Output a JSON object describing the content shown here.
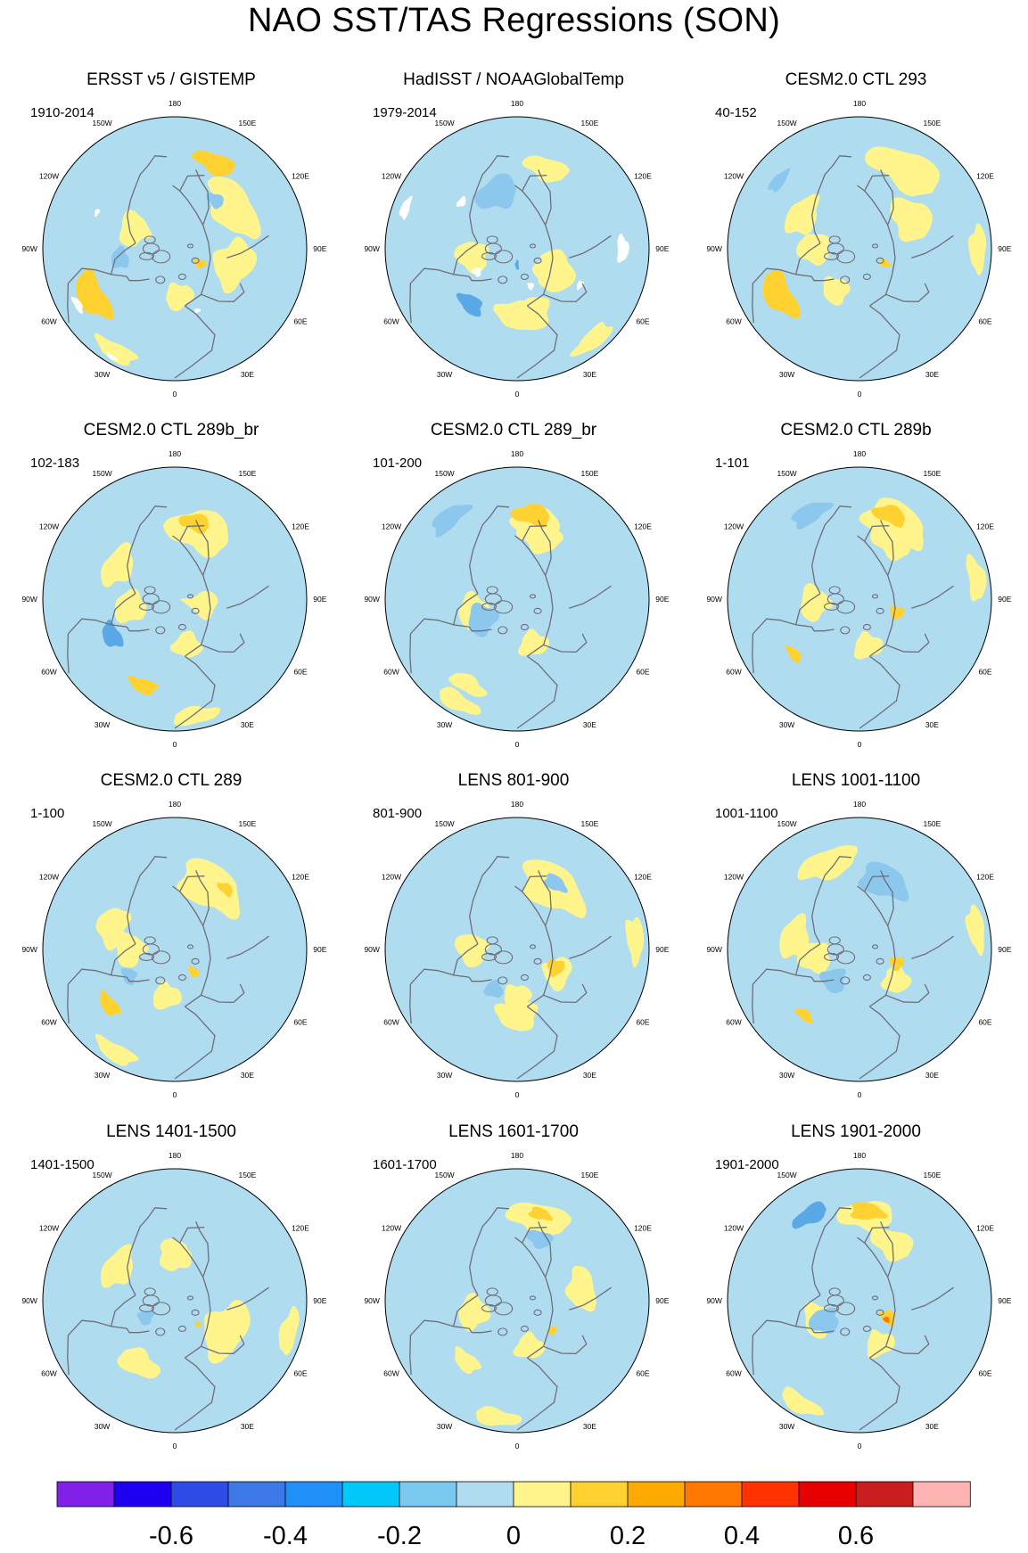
{
  "title": "NAO SST/TAS Regressions (SON)",
  "chart_data": {
    "type": "polar-stereographic contour maps",
    "variable": "SST/TAS regression on NAO",
    "season": "SON",
    "projection": "North polar stereographic",
    "longitude_labels": [
      "180",
      "150W",
      "150E",
      "120W",
      "120E",
      "90W",
      "90E",
      "60W",
      "60E",
      "30W",
      "30E",
      "0"
    ],
    "panels": [
      {
        "title": "ERSST v5 / GISTEMP",
        "period": "1910-2014",
        "missing_data": true,
        "features": [
          {
            "lon": 125,
            "r": 0.55,
            "s": 0.28,
            "level": 1
          },
          {
            "lon": 155,
            "r": 0.72,
            "s": 0.14,
            "level": 2
          },
          {
            "lon": 140,
            "r": 0.48,
            "s": 0.09,
            "level": -1
          },
          {
            "lon": 300,
            "r": 0.72,
            "s": 0.18,
            "level": 2
          },
          {
            "lon": 280,
            "r": 0.42,
            "s": 0.12,
            "level": -1
          },
          {
            "lon": 60,
            "r": 0.22,
            "s": 0.09,
            "level": 2
          },
          {
            "lon": 75,
            "r": 0.45,
            "s": 0.25,
            "level": 1
          }
        ]
      },
      {
        "title": "HadISST / NOAAGlobalTemp",
        "period": "1979-2014",
        "missing_data": true,
        "features": [
          {
            "lon": 160,
            "r": 0.65,
            "s": 0.16,
            "level": 1
          },
          {
            "lon": 200,
            "r": 0.45,
            "s": 0.22,
            "level": -1
          },
          {
            "lon": 60,
            "r": 0.32,
            "s": 0.28,
            "level": 1
          },
          {
            "lon": 10,
            "r": 0.5,
            "s": 0.22,
            "level": 1
          },
          {
            "lon": 0,
            "r": 0.12,
            "s": 0.07,
            "level": -2
          },
          {
            "lon": 320,
            "r": 0.55,
            "s": 0.12,
            "level": -2
          }
        ]
      },
      {
        "title": "CESM2.0 CTL 293",
        "period": "40-152",
        "missing_data": false,
        "features": [
          {
            "lon": 150,
            "r": 0.7,
            "s": 0.26,
            "level": 1
          },
          {
            "lon": 120,
            "r": 0.45,
            "s": 0.25,
            "level": 1
          },
          {
            "lon": 300,
            "r": 0.7,
            "s": 0.18,
            "level": 2
          },
          {
            "lon": 60,
            "r": 0.22,
            "s": 0.08,
            "level": 2
          },
          {
            "lon": 230,
            "r": 0.8,
            "s": 0.08,
            "level": -1
          }
        ]
      },
      {
        "title": "CESM2.0 CTL 289b_br",
        "period": "102-183",
        "missing_data": false,
        "features": [
          {
            "lon": 160,
            "r": 0.55,
            "s": 0.28,
            "level": 1
          },
          {
            "lon": 165,
            "r": 0.6,
            "s": 0.12,
            "level": 2
          },
          {
            "lon": 300,
            "r": 0.55,
            "s": 0.12,
            "level": -2
          },
          {
            "lon": 340,
            "r": 0.7,
            "s": 0.1,
            "level": 2
          },
          {
            "lon": 80,
            "r": 0.2,
            "s": 0.25,
            "level": 1
          }
        ]
      },
      {
        "title": "CESM2.0 CTL 289_br",
        "period": "101-200",
        "missing_data": false,
        "features": [
          {
            "lon": 165,
            "r": 0.6,
            "s": 0.2,
            "level": 1
          },
          {
            "lon": 170,
            "r": 0.65,
            "s": 0.14,
            "level": 2
          },
          {
            "lon": 220,
            "r": 0.8,
            "s": 0.13,
            "level": -1
          },
          {
            "lon": 300,
            "r": 0.3,
            "s": 0.22,
            "level": -1
          },
          {
            "lon": 330,
            "r": 0.75,
            "s": 0.12,
            "level": 1
          }
        ]
      },
      {
        "title": "CESM2.0 CTL 289b",
        "period": "1-101",
        "missing_data": false,
        "features": [
          {
            "lon": 155,
            "r": 0.65,
            "s": 0.25,
            "level": 1
          },
          {
            "lon": 160,
            "r": 0.68,
            "s": 0.12,
            "level": 2
          },
          {
            "lon": 210,
            "r": 0.75,
            "s": 0.13,
            "level": -1
          },
          {
            "lon": 70,
            "r": 0.3,
            "s": 0.1,
            "level": 2
          },
          {
            "lon": 310,
            "r": 0.65,
            "s": 0.07,
            "level": 2
          }
        ]
      },
      {
        "title": "CESM2.0 CTL 289",
        "period": "1-100",
        "missing_data": false,
        "features": [
          {
            "lon": 150,
            "r": 0.55,
            "s": 0.3,
            "level": 1
          },
          {
            "lon": 140,
            "r": 0.6,
            "s": 0.07,
            "level": 2
          },
          {
            "lon": 310,
            "r": 0.65,
            "s": 0.1,
            "level": 2
          },
          {
            "lon": 300,
            "r": 0.4,
            "s": 0.1,
            "level": -1
          },
          {
            "lon": 40,
            "r": 0.22,
            "s": 0.09,
            "level": 2
          }
        ]
      },
      {
        "title": "LENS 801-900",
        "period": "801-900",
        "missing_data": false,
        "features": [
          {
            "lon": 150,
            "r": 0.55,
            "s": 0.3,
            "level": 1
          },
          {
            "lon": 150,
            "r": 0.58,
            "s": 0.1,
            "level": -1
          },
          {
            "lon": 60,
            "r": 0.35,
            "s": 0.2,
            "level": 1
          },
          {
            "lon": 65,
            "r": 0.32,
            "s": 0.12,
            "level": 2
          },
          {
            "lon": 330,
            "r": 0.35,
            "s": 0.12,
            "level": -1
          }
        ]
      },
      {
        "title": "LENS 1001-1100",
        "period": "1001-1100",
        "missing_data": false,
        "features": [
          {
            "lon": 160,
            "r": 0.55,
            "s": 0.22,
            "level": -1
          },
          {
            "lon": 200,
            "r": 0.7,
            "s": 0.2,
            "level": 1
          },
          {
            "lon": 320,
            "r": 0.3,
            "s": 0.18,
            "level": -1
          },
          {
            "lon": 70,
            "r": 0.3,
            "s": 0.1,
            "level": 2
          },
          {
            "lon": 320,
            "r": 0.65,
            "s": 0.07,
            "level": 2
          }
        ]
      },
      {
        "title": "LENS 1401-1500",
        "period": "1401-1500",
        "missing_data": false,
        "features": [
          {
            "lon": 60,
            "r": 0.45,
            "s": 0.3,
            "level": 1
          },
          {
            "lon": 330,
            "r": 0.55,
            "s": 0.18,
            "level": 1
          },
          {
            "lon": 300,
            "r": 0.25,
            "s": 0.12,
            "level": -1
          },
          {
            "lon": 45,
            "r": 0.25,
            "s": 0.05,
            "level": 2
          }
        ]
      },
      {
        "title": "LENS 1601-1700",
        "period": "1601-1700",
        "missing_data": false,
        "features": [
          {
            "lon": 165,
            "r": 0.65,
            "s": 0.22,
            "level": 1
          },
          {
            "lon": 165,
            "r": 0.68,
            "s": 0.08,
            "level": 2
          },
          {
            "lon": 160,
            "r": 0.5,
            "s": 0.12,
            "level": -1
          },
          {
            "lon": 320,
            "r": 0.6,
            "s": 0.12,
            "level": 1
          },
          {
            "lon": 50,
            "r": 0.35,
            "s": 0.06,
            "level": 2
          }
        ]
      },
      {
        "title": "LENS 1901-2000",
        "period": "1901-2000",
        "missing_data": false,
        "features": [
          {
            "lon": 175,
            "r": 0.65,
            "s": 0.2,
            "level": 1
          },
          {
            "lon": 175,
            "r": 0.68,
            "s": 0.12,
            "level": 2
          },
          {
            "lon": 210,
            "r": 0.75,
            "s": 0.12,
            "level": -2
          },
          {
            "lon": 300,
            "r": 0.3,
            "s": 0.2,
            "level": -1
          },
          {
            "lon": 60,
            "r": 0.25,
            "s": 0.12,
            "level": 2
          },
          {
            "lon": 55,
            "r": 0.25,
            "s": 0.05,
            "level": 3
          }
        ]
      }
    ],
    "colorbar": {
      "colors": [
        "#8020E8",
        "#1E00F0",
        "#2F4BE6",
        "#3C78E6",
        "#1E90F8",
        "#00C8F8",
        "#78C8F0",
        "#B0DCF0",
        "#FFF58C",
        "#FFD232",
        "#FFAA00",
        "#FF7800",
        "#FF3200",
        "#E60000",
        "#C81E1E",
        "#FFB4B4"
      ],
      "ticks": [
        "-0.6",
        "-0.4",
        "-0.2",
        "0",
        "0.2",
        "0.4",
        "0.6"
      ],
      "tick_values": [
        -0.6,
        -0.4,
        -0.2,
        0,
        0.2,
        0.4,
        0.6
      ],
      "range": [
        -0.8,
        0.8
      ]
    }
  }
}
